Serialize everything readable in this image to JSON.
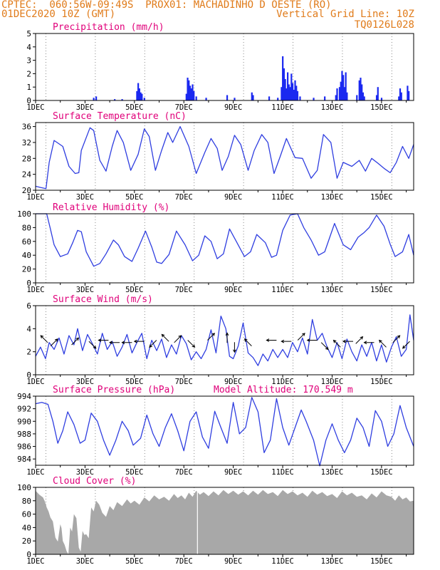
{
  "header": {
    "line1": "CPTEC:  060:56W-09:49S  PROX01: MACHADINHO D OESTE (RO)",
    "line2": "01DEC2020 10Z (GMT)",
    "grid_note": "Vertical Grid Line: 10Z",
    "code": "TQ0126L028"
  },
  "colors": {
    "title": "#e0007a",
    "header": "#e07b1a",
    "line": "#2f3ee0",
    "bar": "#1a28f0",
    "cloud": "#a8a8a8",
    "arrow": "#000000"
  },
  "chart_data": [
    {
      "type": "bar",
      "title": "Precipitation (mm/h)",
      "ylim": [
        0,
        5
      ],
      "yticks": [
        "0",
        "1",
        "2",
        "3",
        "4",
        "5"
      ],
      "xticks": [
        "1DEC",
        "3DEC",
        "5DEC",
        "7DEC",
        "9DEC",
        "11DEC",
        "13DEC",
        "15DEC"
      ],
      "x_unit": "days since 01DEC2020 00Z",
      "xlim": [
        0,
        15.3
      ],
      "points": [
        [
          2.35,
          0.2
        ],
        [
          2.45,
          0.3
        ],
        [
          3.2,
          0.1
        ],
        [
          3.5,
          0.1
        ],
        [
          4.1,
          0.7
        ],
        [
          4.15,
          1.3
        ],
        [
          4.2,
          0.9
        ],
        [
          4.25,
          0.6
        ],
        [
          4.3,
          0.5
        ],
        [
          4.4,
          0.2
        ],
        [
          6.1,
          0.5
        ],
        [
          6.15,
          1.7
        ],
        [
          6.2,
          1.5
        ],
        [
          6.25,
          1.1
        ],
        [
          6.3,
          0.9
        ],
        [
          6.35,
          1.2
        ],
        [
          6.4,
          0.7
        ],
        [
          6.5,
          0.3
        ],
        [
          6.9,
          0.2
        ],
        [
          7.75,
          0.4
        ],
        [
          8.05,
          0.2
        ],
        [
          8.75,
          0.6
        ],
        [
          8.8,
          0.4
        ],
        [
          9.45,
          0.3
        ],
        [
          9.8,
          0.2
        ],
        [
          9.95,
          1.0
        ],
        [
          10.0,
          3.3
        ],
        [
          10.05,
          2.4
        ],
        [
          10.1,
          1.6
        ],
        [
          10.15,
          0.9
        ],
        [
          10.2,
          2.1
        ],
        [
          10.25,
          1.2
        ],
        [
          10.3,
          1.0
        ],
        [
          10.35,
          2.0
        ],
        [
          10.4,
          1.3
        ],
        [
          10.45,
          0.8
        ],
        [
          10.5,
          1.5
        ],
        [
          10.55,
          1.1
        ],
        [
          10.6,
          0.7
        ],
        [
          10.7,
          0.3
        ],
        [
          11.25,
          0.2
        ],
        [
          11.7,
          0.3
        ],
        [
          12.15,
          0.4
        ],
        [
          12.2,
          0.9
        ],
        [
          12.3,
          1.0
        ],
        [
          12.35,
          1.4
        ],
        [
          12.4,
          2.2
        ],
        [
          12.45,
          1.9
        ],
        [
          12.5,
          1.0
        ],
        [
          12.55,
          2.1
        ],
        [
          12.6,
          0.6
        ],
        [
          13.0,
          0.4
        ],
        [
          13.1,
          1.5
        ],
        [
          13.15,
          1.7
        ],
        [
          13.2,
          1.2
        ],
        [
          13.25,
          0.6
        ],
        [
          13.3,
          0.3
        ],
        [
          13.8,
          0.4
        ],
        [
          13.85,
          1.0
        ],
        [
          14.0,
          0.2
        ],
        [
          14.7,
          0.3
        ],
        [
          14.75,
          0.9
        ],
        [
          14.8,
          0.6
        ],
        [
          15.05,
          1.1
        ],
        [
          15.1,
          0.7
        ]
      ]
    },
    {
      "type": "line",
      "title": "Surface Temperature (nC)",
      "ylim": [
        20,
        37
      ],
      "yticks": [
        "20",
        "24",
        "28",
        "32",
        "36"
      ],
      "xticks": [
        "1DEC",
        "3DEC",
        "5DEC",
        "7DEC",
        "9DEC",
        "11DEC",
        "13DEC",
        "15DEC"
      ],
      "x_unit": "days since 01DEC2020 00Z",
      "xlim": [
        0,
        15.3
      ],
      "x": [
        0.0,
        0.2,
        0.42,
        0.55,
        0.75,
        1.1,
        1.35,
        1.6,
        1.75,
        1.85,
        2.2,
        2.35,
        2.6,
        2.85,
        3.1,
        3.3,
        3.55,
        3.85,
        4.15,
        4.4,
        4.6,
        4.85,
        5.1,
        5.35,
        5.55,
        5.85,
        6.2,
        6.5,
        6.85,
        7.1,
        7.35,
        7.55,
        7.8,
        8.05,
        8.3,
        8.6,
        8.85,
        9.15,
        9.4,
        9.65,
        9.9,
        10.15,
        10.5,
        10.8,
        11.15,
        11.4,
        11.65,
        11.95,
        12.2,
        12.45,
        12.8,
        13.1,
        13.35,
        13.6,
        13.85,
        14.1,
        14.35,
        14.6,
        14.85,
        15.1,
        15.3
      ],
      "y": [
        21.0,
        20.7,
        20.4,
        27.0,
        32.5,
        31.0,
        26.0,
        24.2,
        24.4,
        30.0,
        35.7,
        35.0,
        27.5,
        24.8,
        31.0,
        35.0,
        32.0,
        25.0,
        29.0,
        35.4,
        33.5,
        25.0,
        30.0,
        34.5,
        32.0,
        36.0,
        31.0,
        24.2,
        29.5,
        33.0,
        30.5,
        25.0,
        28.5,
        33.8,
        31.5,
        25.0,
        30.0,
        34.0,
        32.0,
        24.2,
        28.5,
        33.0,
        28.2,
        28.0,
        23.0,
        25.0,
        34.0,
        32.0,
        23.0,
        27.0,
        26.0,
        27.5,
        24.8,
        28.0,
        26.8,
        25.5,
        24.4,
        27.0,
        31.0,
        28.0,
        31.5
      ]
    },
    {
      "type": "line",
      "title": "Relative Humidity (%)",
      "ylim": [
        0,
        100
      ],
      "yticks": [
        "0",
        "20",
        "40",
        "60",
        "80",
        "100"
      ],
      "xticks": [
        "1DEC",
        "3DEC",
        "5DEC",
        "7DEC",
        "9DEC",
        "11DEC",
        "13DEC",
        "15DEC"
      ],
      "x_unit": "days since 01DEC2020 00Z",
      "xlim": [
        0,
        15.3
      ],
      "x": [
        0.0,
        0.45,
        0.6,
        0.75,
        1.0,
        1.3,
        1.5,
        1.7,
        1.85,
        2.05,
        2.35,
        2.6,
        2.85,
        3.15,
        3.35,
        3.6,
        3.9,
        4.15,
        4.45,
        4.7,
        4.9,
        5.1,
        5.4,
        5.7,
        6.05,
        6.35,
        6.6,
        6.85,
        7.1,
        7.35,
        7.6,
        7.85,
        8.15,
        8.45,
        8.7,
        8.95,
        9.3,
        9.55,
        9.75,
        10.0,
        10.3,
        10.6,
        10.85,
        11.15,
        11.45,
        11.7,
        12.1,
        12.45,
        12.75,
        13.05,
        13.3,
        13.5,
        13.8,
        14.1,
        14.35,
        14.55,
        14.85,
        15.1,
        15.3
      ],
      "y": [
        100,
        100,
        78,
        55,
        38,
        42,
        58,
        76,
        74,
        45,
        24,
        28,
        42,
        62,
        55,
        38,
        31,
        50,
        75,
        52,
        30,
        28,
        41,
        75,
        55,
        32,
        40,
        68,
        60,
        35,
        42,
        78,
        58,
        38,
        45,
        70,
        58,
        37,
        40,
        76,
        98,
        100,
        80,
        62,
        40,
        45,
        86,
        55,
        48,
        66,
        73,
        80,
        98,
        82,
        56,
        38,
        45,
        70,
        40
      ]
    },
    {
      "type": "line",
      "title": "Surface Wind (m/s)",
      "ylim": [
        0,
        6
      ],
      "yticks": [
        "0",
        "2",
        "4",
        "6"
      ],
      "xticks": [
        "1DEC",
        "3DEC",
        "5DEC",
        "7DEC",
        "9DEC",
        "11DEC",
        "13DEC",
        "15DEC"
      ],
      "x_unit": "days since 01DEC2020 00Z",
      "xlim": [
        0,
        15.3
      ],
      "x": [
        0.0,
        0.2,
        0.4,
        0.55,
        0.75,
        0.95,
        1.15,
        1.35,
        1.55,
        1.7,
        1.9,
        2.1,
        2.3,
        2.5,
        2.7,
        2.9,
        3.1,
        3.3,
        3.5,
        3.7,
        3.9,
        4.1,
        4.3,
        4.5,
        4.7,
        4.9,
        5.1,
        5.3,
        5.5,
        5.7,
        5.9,
        6.1,
        6.3,
        6.5,
        6.7,
        6.9,
        7.1,
        7.3,
        7.5,
        7.7,
        7.85,
        8.0,
        8.2,
        8.4,
        8.6,
        8.8,
        9.0,
        9.2,
        9.4,
        9.6,
        9.8,
        10.0,
        10.2,
        10.4,
        10.6,
        10.8,
        11.0,
        11.2,
        11.4,
        11.6,
        11.8,
        12.0,
        12.2,
        12.4,
        12.6,
        12.8,
        13.0,
        13.2,
        13.4,
        13.6,
        13.8,
        14.0,
        14.2,
        14.4,
        14.6,
        14.8,
        15.0,
        15.15,
        15.3
      ],
      "y": [
        1.6,
        2.4,
        1.4,
        2.8,
        2.2,
        3.2,
        1.8,
        3.4,
        2.6,
        4.0,
        2.1,
        3.5,
        2.7,
        1.8,
        3.6,
        2.2,
        2.9,
        1.6,
        2.4,
        3.5,
        1.9,
        2.8,
        3.6,
        1.4,
        3.0,
        2.1,
        3.1,
        1.5,
        2.6,
        1.8,
        3.4,
        2.7,
        1.3,
        2.0,
        1.4,
        2.2,
        3.9,
        1.9,
        5.1,
        4.0,
        1.6,
        1.4,
        2.5,
        4.5,
        1.9,
        1.5,
        0.8,
        1.8,
        1.2,
        2.2,
        1.5,
        2.2,
        1.5,
        2.8,
        2.0,
        3.2,
        1.8,
        4.8,
        3.0,
        3.6,
        2.4,
        1.5,
        2.8,
        1.4,
        3.1,
        2.0,
        1.2,
        2.6,
        1.6,
        2.8,
        1.2,
        2.6,
        1.1,
        2.4,
        3.3,
        1.6,
        2.2,
        5.2,
        3.0
      ]
    },
    {
      "type": "line",
      "title": "Surface Pressure (hPa)",
      "note": "Model Altitude: 170.549 m",
      "ylim": [
        983,
        994
      ],
      "yticks": [
        "984",
        "986",
        "988",
        "990",
        "992",
        "994"
      ],
      "xticks": [
        "1DEC",
        "3DEC",
        "5DEC",
        "7DEC",
        "9DEC",
        "11DEC",
        "13DEC",
        "15DEC"
      ],
      "x_unit": "days since 01DEC2020 00Z",
      "xlim": [
        0,
        15.3
      ],
      "x": [
        0.0,
        0.25,
        0.5,
        0.7,
        0.9,
        1.1,
        1.3,
        1.55,
        1.8,
        2.0,
        2.25,
        2.5,
        2.75,
        3.0,
        3.25,
        3.5,
        3.75,
        3.95,
        4.25,
        4.5,
        4.75,
        5.0,
        5.25,
        5.5,
        5.75,
        6.0,
        6.25,
        6.5,
        6.75,
        7.0,
        7.25,
        7.5,
        7.75,
        8.0,
        8.25,
        8.5,
        8.75,
        9.0,
        9.25,
        9.5,
        9.75,
        10.0,
        10.25,
        10.5,
        10.75,
        10.95,
        11.25,
        11.5,
        11.75,
        12.0,
        12.25,
        12.5,
        12.75,
        13.0,
        13.25,
        13.5,
        13.75,
        14.0,
        14.25,
        14.5,
        14.75,
        15.0,
        15.3
      ],
      "y": [
        992.8,
        993.0,
        992.7,
        990.0,
        986.5,
        988.5,
        991.5,
        989.5,
        986.5,
        987.0,
        991.3,
        990.0,
        987.0,
        984.6,
        987.0,
        990.0,
        988.5,
        986.2,
        987.3,
        991.0,
        988.0,
        986.0,
        989.0,
        991.2,
        988.5,
        985.3,
        990.0,
        991.5,
        987.5,
        985.7,
        991.6,
        989.0,
        986.5,
        993.0,
        988.0,
        989.0,
        993.8,
        991.5,
        985.0,
        987.0,
        993.6,
        989.0,
        986.2,
        989.0,
        991.8,
        990.0,
        987.0,
        982.9,
        987.0,
        989.6,
        987.0,
        985.0,
        987.0,
        990.5,
        989.0,
        986.0,
        991.7,
        990.0,
        986.0,
        988.0,
        992.5,
        989.0,
        986.0
      ]
    },
    {
      "type": "bar",
      "title": "Cloud Cover (%)",
      "ylim": [
        0,
        100
      ],
      "yticks": [
        "0",
        "20",
        "40",
        "60",
        "80",
        "100"
      ],
      "xticks": [
        "1DEC",
        "3DEC",
        "5DEC",
        "7DEC",
        "9DEC",
        "11DEC",
        "13DEC",
        "15DEC"
      ],
      "x_unit": "days since 01DEC2020 00Z",
      "xlim": [
        0,
        15.3
      ],
      "x": [
        0.0,
        0.3,
        0.45,
        0.6,
        0.8,
        1.0,
        1.1,
        1.25,
        1.4,
        1.55,
        1.75,
        1.9,
        2.05,
        2.25,
        2.45,
        2.7,
        3.0,
        3.3,
        3.7,
        4.0,
        4.4,
        4.8,
        5.2,
        5.6,
        5.9,
        6.2,
        6.5,
        6.8,
        7.2,
        7.6,
        8.0,
        8.4,
        8.8,
        9.2,
        9.6,
        10.0,
        10.4,
        10.8,
        11.2,
        11.6,
        12.0,
        12.4,
        12.8,
        13.2,
        13.6,
        14.0,
        14.4,
        14.7,
        15.0,
        15.3
      ],
      "y": [
        95,
        85,
        70,
        55,
        25,
        45,
        20,
        5,
        40,
        60,
        10,
        35,
        30,
        70,
        80,
        62,
        72,
        78,
        82,
        80,
        85,
        88,
        86,
        90,
        88,
        92,
        95,
        93,
        94,
        96,
        95,
        94,
        95,
        96,
        93,
        96,
        94,
        92,
        95,
        93,
        90,
        94,
        92,
        88,
        91,
        94,
        86,
        88,
        85,
        80
      ]
    }
  ],
  "wind_arrows": [
    {
      "x": 0.35,
      "y": 3.1,
      "dir": "up-left"
    },
    {
      "x": 0.75,
      "y": 2.8,
      "dir": "up-right"
    },
    {
      "x": 1.6,
      "y": 2.9,
      "dir": "up-right"
    },
    {
      "x": 2.3,
      "y": 2.6,
      "dir": "down-right"
    },
    {
      "x": 2.75,
      "y": 3.0,
      "dir": "left"
    },
    {
      "x": 3.2,
      "y": 2.8,
      "dir": "left"
    },
    {
      "x": 3.7,
      "y": 2.8,
      "dir": "left"
    },
    {
      "x": 4.2,
      "y": 2.9,
      "dir": "left"
    },
    {
      "x": 4.75,
      "y": 2.7,
      "dir": "down-left"
    },
    {
      "x": 5.25,
      "y": 3.2,
      "dir": "up-left"
    },
    {
      "x": 5.75,
      "y": 3.1,
      "dir": "up-right"
    },
    {
      "x": 6.3,
      "y": 2.7,
      "dir": "down-right"
    },
    {
      "x": 7.1,
      "y": 3.3,
      "dir": "up-right"
    },
    {
      "x": 7.75,
      "y": 3.2,
      "dir": "up"
    },
    {
      "x": 8.05,
      "y": 2.4,
      "dir": "down"
    },
    {
      "x": 8.6,
      "y": 2.8,
      "dir": "up-left"
    },
    {
      "x": 9.55,
      "y": 3.0,
      "dir": "left"
    },
    {
      "x": 10.15,
      "y": 2.9,
      "dir": "left"
    },
    {
      "x": 10.75,
      "y": 3.3,
      "dir": "up-right"
    },
    {
      "x": 11.2,
      "y": 3.0,
      "dir": "left"
    },
    {
      "x": 11.7,
      "y": 2.5,
      "dir": "down-right"
    },
    {
      "x": 12.2,
      "y": 2.7,
      "dir": "up-left"
    },
    {
      "x": 12.65,
      "y": 2.9,
      "dir": "left"
    },
    {
      "x": 13.1,
      "y": 3.0,
      "dir": "up-right"
    },
    {
      "x": 13.5,
      "y": 2.8,
      "dir": "left"
    },
    {
      "x": 14.05,
      "y": 2.7,
      "dir": "up-left"
    },
    {
      "x": 14.6,
      "y": 3.1,
      "dir": "up-right"
    },
    {
      "x": 15.0,
      "y": 2.6,
      "dir": "down-left"
    }
  ]
}
